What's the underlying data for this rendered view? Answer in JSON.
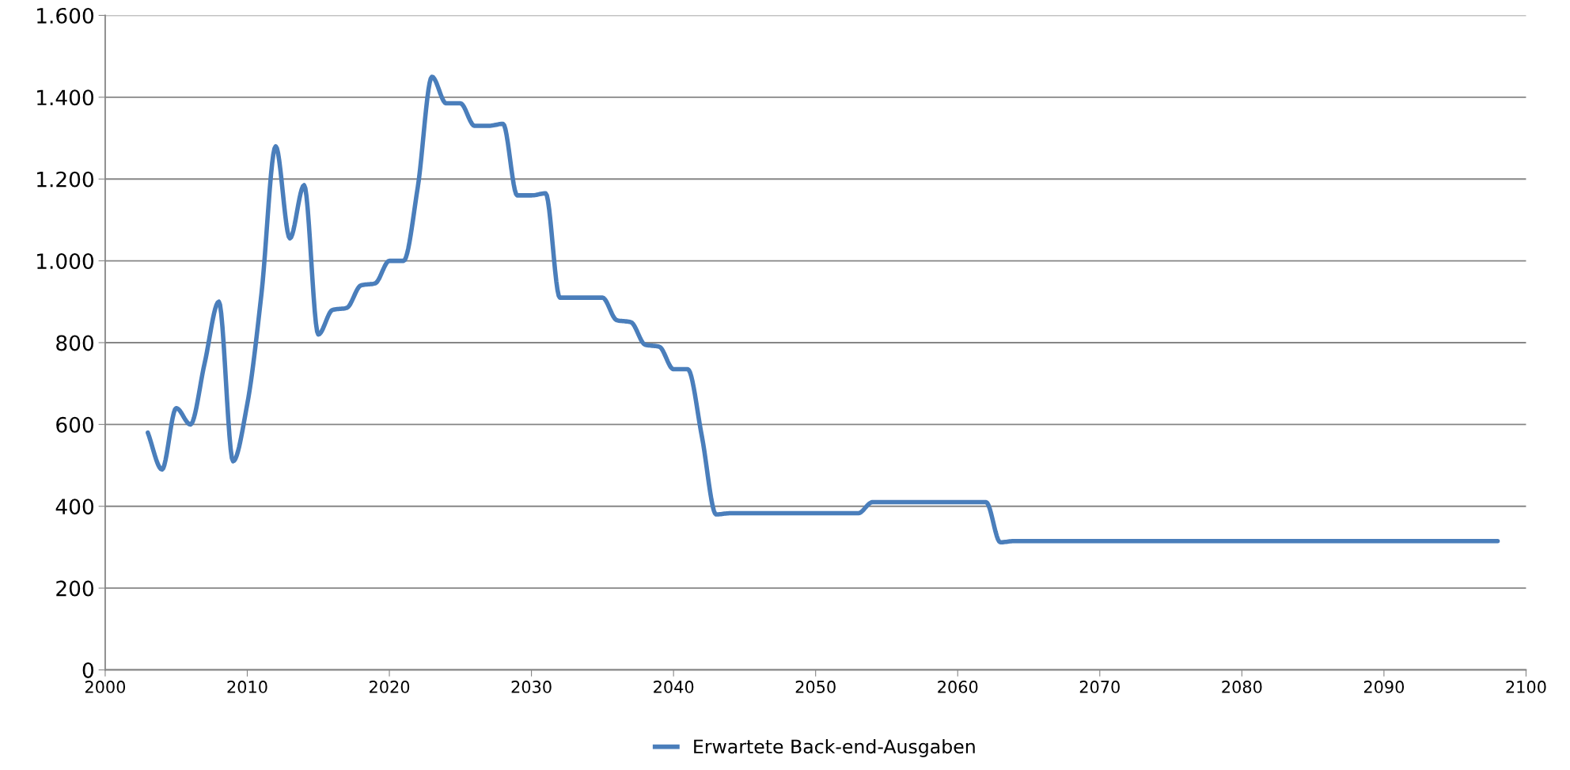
{
  "chart_data": {
    "type": "line",
    "x": [
      2003,
      2004,
      2005,
      2006,
      2007,
      2008,
      2009,
      2010,
      2011,
      2012,
      2013,
      2014,
      2015,
      2016,
      2017,
      2018,
      2019,
      2020,
      2021,
      2022,
      2023,
      2024,
      2025,
      2026,
      2027,
      2028,
      2029,
      2030,
      2031,
      2032,
      2033,
      2034,
      2035,
      2036,
      2037,
      2038,
      2039,
      2040,
      2041,
      2042,
      2043,
      2044,
      2045,
      2046,
      2047,
      2048,
      2049,
      2050,
      2051,
      2052,
      2053,
      2054,
      2055,
      2056,
      2057,
      2058,
      2059,
      2060,
      2061,
      2062,
      2063,
      2064,
      2065,
      2070,
      2075,
      2080,
      2085,
      2090,
      2095,
      2098
    ],
    "series": [
      {
        "name": "Erwartete Back-end-Ausgaben",
        "color": "#4a7ebb",
        "values": [
          580,
          490,
          640,
          600,
          750,
          900,
          510,
          650,
          920,
          1280,
          1055,
          1185,
          820,
          880,
          885,
          940,
          945,
          1000,
          1000,
          1180,
          1450,
          1385,
          1385,
          1330,
          1330,
          1335,
          1160,
          1160,
          1165,
          910,
          910,
          910,
          910,
          855,
          850,
          795,
          790,
          735,
          735,
          570,
          380,
          383,
          383,
          383,
          383,
          383,
          383,
          383,
          383,
          383,
          383,
          410,
          410,
          410,
          410,
          410,
          410,
          410,
          410,
          410,
          312,
          315,
          315,
          315,
          315,
          315,
          315,
          315,
          315,
          315
        ]
      }
    ],
    "xlim": [
      2000,
      2100
    ],
    "xticks": [
      2000,
      2010,
      2020,
      2030,
      2040,
      2050,
      2060,
      2070,
      2080,
      2090,
      2100
    ],
    "ylim": [
      0,
      1600
    ],
    "yticks": [
      0,
      200,
      400,
      600,
      800,
      {
        "value": 1000,
        "label": "1.000"
      },
      {
        "value": 1200,
        "label": "1.200"
      },
      {
        "value": 1400,
        "label": "1.400"
      },
      {
        "value": 1600,
        "label": "1.600"
      }
    ],
    "grid": "y",
    "legend": "bottom",
    "marker": "none",
    "line_style": "solid"
  }
}
